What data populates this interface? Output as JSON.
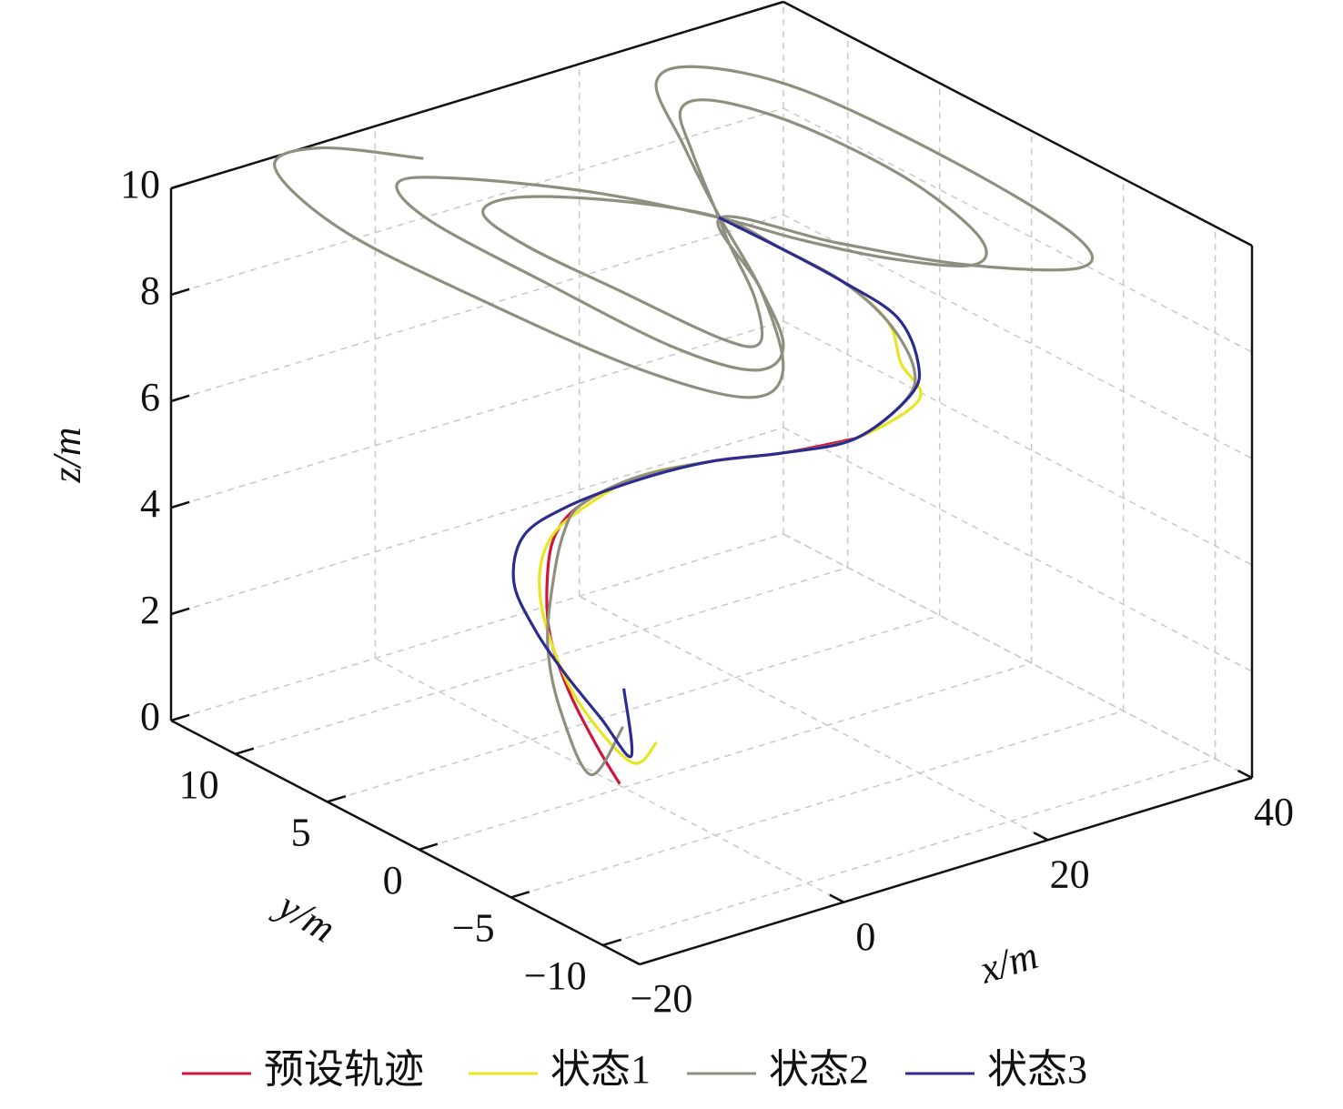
{
  "chart_data": {
    "type": "line3d",
    "xlabel": "x/m",
    "ylabel": "y/m",
    "zlabel": "z/m",
    "xlim": [
      -20,
      40
    ],
    "ylim": [
      -12,
      13.5
    ],
    "zlim": [
      0,
      10
    ],
    "xticks": [
      {
        "value": -20,
        "label": "−20"
      },
      0,
      20,
      40
    ],
    "yticks": [
      {
        "value": -10,
        "label": "−10"
      },
      {
        "value": -5,
        "label": "−5"
      },
      0,
      5,
      10
    ],
    "zticks": [
      0,
      2,
      4,
      6,
      8,
      10
    ],
    "grid": true,
    "legend": "bottom",
    "series": [
      {
        "name": "预设轨迹",
        "color": "#d0143c",
        "x": [
          0.2,
          0.8,
          2.4,
          4.0,
          6.4,
          8.6,
          10.9,
          14.4,
          17.6,
          20.6,
          24.2
        ],
        "y": [
          0.3,
          1.9,
          4.3,
          6.2,
          7.7,
          8.5,
          8.3,
          7.2,
          5.0,
          2.7,
          0.8
        ],
        "z": [
          0,
          0.4,
          0.9,
          1.5,
          2.1,
          2.7,
          3.2,
          3.7,
          4.2,
          4.6,
          5.0
        ]
      },
      {
        "name": "状态1",
        "color": "#e6e622",
        "x": [
          7.4,
          3.5,
          2.3,
          3.9,
          6.0,
          7.7,
          9.9,
          14.4,
          17.6,
          20.6,
          24.2,
          29.0,
          29.0,
          30.6,
          29.4,
          27.0,
          24.3
        ],
        "y": [
          2.3,
          1.5,
          3.7,
          6.2,
          7.9,
          8.3,
          7.9,
          7.2,
          5.0,
          2.7,
          0.8,
          0.0,
          1.0,
          2.6,
          4.4,
          6.3,
          8.3
        ],
        "z": [
          0,
          0,
          0.8,
          1.5,
          2.1,
          2.7,
          3.2,
          3.7,
          4.2,
          4.6,
          5.0,
          5.6,
          6.1,
          6.5,
          7.0,
          7.4,
          7.8
        ]
      },
      {
        "name": "状态2",
        "color": "#8f8f80",
        "x": [
          3.4,
          -0.5,
          1.0,
          3.4,
          6.8,
          9.7,
          10.9,
          14.4,
          17.6,
          20.6,
          24.2,
          28.8,
          29.9,
          30.6,
          29.4,
          27.0,
          24.3,
          19.8,
          13.7,
          9.3,
          7.9,
          8.2,
          8.6,
          10.3,
          15.1,
          19.8,
          22.3,
          27.9,
          32.1,
          35.0,
          37.0,
          36.9,
          34.2,
          30.4,
          25.9,
          22.3,
          19.7,
          14.5,
          7.5,
          3.1,
          0.4,
          -0.1,
          -0.1,
          2.0,
          6.5,
          12.2,
          17.4,
          23.5,
          28.8,
          32.9,
          36.4,
          36.9,
          35.3,
          31.6,
          24.7,
          19.2,
          14.7,
          8.3,
          -0.2,
          -5.9,
          -9.5,
          -11.3,
          -12.0,
          -9.1,
          -4.4,
          0.4
        ],
        "y": [
          1.9,
          1.5,
          4.0,
          6.0,
          7.6,
          8.6,
          8.3,
          7.2,
          5.0,
          2.7,
          0.8,
          0.6,
          0.8,
          2.6,
          4.4,
          6.3,
          8.3,
          11.2,
          13.3,
          12.8,
          9.6,
          4.8,
          -0.5,
          -1.7,
          1.2,
          5.2,
          7.2,
          11.7,
          14.7,
          14.4,
          10.8,
          4.9,
          -0.4,
          -2.2,
          -0.3,
          2.7,
          5.7,
          9.8,
          13.3,
          14.0,
          10.8,
          4.1,
          -2.8,
          -6.1,
          -5.1,
          -0.5,
          4.4,
          9.8,
          14.2,
          14.3,
          10.5,
          2.4,
          -5.0,
          -7.3,
          -4.9,
          -1.0,
          2.9,
          -2.9,
          -8.8,
          -10.0,
          -6.1,
          0.9,
          8.5,
          13.9,
          14.1,
          11.1
        ],
        "z": [
          0.6,
          0,
          0.7,
          1.4,
          2.1,
          2.7,
          3.2,
          3.7,
          4.2,
          4.6,
          5.0,
          5.5,
          6.0,
          6.5,
          7.0,
          7.4,
          7.8,
          7.85,
          7.9,
          7.95,
          7.98,
          8.0,
          8.03,
          8.05,
          8.07,
          8.1,
          8.12,
          8.17,
          8.22,
          8.27,
          8.32,
          8.37,
          8.41,
          8.44,
          8.47,
          8.5,
          8.53,
          8.58,
          8.62,
          8.66,
          8.7,
          8.74,
          8.78,
          8.82,
          8.85,
          8.88,
          8.9,
          8.95,
          9.0,
          9.05,
          9.1,
          9.15,
          9.2,
          9.23,
          9.26,
          9.29,
          9.32,
          9.37,
          9.42,
          9.47,
          9.52,
          9.57,
          9.62,
          9.68,
          9.74,
          9.8
        ]
      },
      {
        "name": "状态3",
        "color": "#2c2c90",
        "x": [
          4.2,
          4.2,
          4.3,
          4.3,
          4.0,
          4.4,
          6.6,
          9.5,
          14.1,
          17.6,
          20.6,
          24.2,
          29.6,
          30.7,
          31.7,
          29.4,
          27.0,
          24.3
        ],
        "y": [
          2.3,
          1.9,
          3.6,
          5.6,
          7.1,
          8.4,
          9.1,
          8.4,
          7.0,
          5.0,
          2.7,
          0.8,
          0.8,
          1.0,
          2.7,
          4.4,
          6.3,
          8.3
        ],
        "z": [
          1.2,
          0,
          0.4,
          0.9,
          1.5,
          2.1,
          2.7,
          3.2,
          3.7,
          4.2,
          4.6,
          5.0,
          5.5,
          6.0,
          6.5,
          7.0,
          7.4,
          7.8
        ]
      }
    ]
  }
}
